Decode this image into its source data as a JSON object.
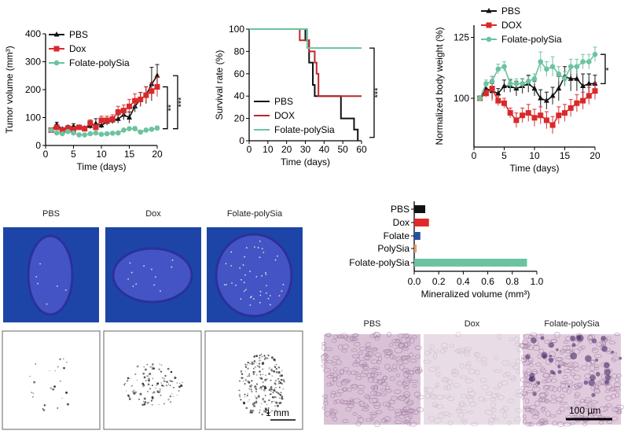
{
  "colors": {
    "pbs": "#111111",
    "dox": "#d9292b",
    "folate_polysia": "#6cc3a0",
    "folate": "#2a4fa0",
    "polysia": "#e0a070",
    "ct_bg": "#1d45a8"
  },
  "chart_data": [
    {
      "id": "tumor",
      "type": "line",
      "xlabel": "Time (days)",
      "ylabel": "Tumor volume (mm³)",
      "xlim": [
        0,
        20
      ],
      "ylim": [
        0,
        400
      ],
      "xticks": [
        0,
        5,
        10,
        15,
        20
      ],
      "yticks": [
        0,
        100,
        200,
        300,
        400
      ],
      "legend": "top-left",
      "x": [
        1,
        2,
        3,
        4,
        5,
        6,
        7,
        8,
        9,
        10,
        11,
        12,
        13,
        14,
        15,
        16,
        17,
        18,
        19,
        20
      ],
      "series": [
        {
          "name": "PBS",
          "marker": "triangle",
          "color": "#111111",
          "values": [
            55,
            75,
            58,
            65,
            68,
            65,
            62,
            70,
            78,
            72,
            85,
            90,
            95,
            110,
            100,
            140,
            165,
            180,
            220,
            250
          ],
          "err": [
            5,
            8,
            6,
            6,
            10,
            8,
            6,
            10,
            18,
            10,
            12,
            12,
            15,
            18,
            20,
            20,
            25,
            30,
            60,
            40
          ]
        },
        {
          "name": "Dox",
          "marker": "square",
          "color": "#d9292b",
          "values": [
            55,
            65,
            55,
            62,
            58,
            65,
            60,
            80,
            65,
            90,
            90,
            95,
            120,
            125,
            140,
            160,
            165,
            180,
            195,
            210
          ],
          "err": [
            5,
            8,
            6,
            6,
            6,
            8,
            6,
            12,
            10,
            15,
            15,
            15,
            20,
            20,
            25,
            25,
            25,
            30,
            30,
            35
          ]
        },
        {
          "name": "Folate-polySia",
          "marker": "circle",
          "color": "#6cc3a0",
          "values": [
            55,
            45,
            42,
            50,
            45,
            38,
            38,
            42,
            45,
            40,
            42,
            44,
            45,
            55,
            60,
            60,
            48,
            55,
            58,
            62
          ],
          "err": [
            4,
            4,
            4,
            4,
            4,
            3,
            3,
            4,
            4,
            4,
            4,
            4,
            4,
            5,
            6,
            8,
            6,
            6,
            6,
            8
          ]
        }
      ],
      "significance": [
        "**",
        "***"
      ]
    },
    {
      "id": "survival",
      "type": "line",
      "step": true,
      "xlabel": "Time (days)",
      "ylabel": "Survival rate (%)",
      "xlim": [
        0,
        60
      ],
      "ylim": [
        0,
        100
      ],
      "xticks": [
        0,
        10,
        20,
        30,
        40,
        50,
        60
      ],
      "yticks": [
        0,
        20,
        40,
        60,
        80,
        100
      ],
      "legend": "bottom-left",
      "series": [
        {
          "name": "PBS",
          "color": "#111111",
          "points": [
            [
              0,
              100
            ],
            [
              30,
              100
            ],
            [
              30,
              90
            ],
            [
              32,
              90
            ],
            [
              32,
              70
            ],
            [
              34,
              70
            ],
            [
              34,
              50
            ],
            [
              35,
              50
            ],
            [
              35,
              40
            ],
            [
              49,
              40
            ],
            [
              49,
              20
            ],
            [
              56,
              20
            ],
            [
              56,
              10
            ],
            [
              58,
              10
            ],
            [
              58,
              0
            ]
          ]
        },
        {
          "name": "DOX",
          "color": "#c0262a",
          "points": [
            [
              0,
              100
            ],
            [
              27,
              100
            ],
            [
              27,
              90
            ],
            [
              32,
              90
            ],
            [
              32,
              80
            ],
            [
              35,
              80
            ],
            [
              35,
              70
            ],
            [
              36,
              70
            ],
            [
              36,
              60
            ],
            [
              37,
              60
            ],
            [
              37,
              40
            ],
            [
              60,
              40
            ]
          ]
        },
        {
          "name": "Folate-polySia",
          "color": "#6cc3a0",
          "points": [
            [
              0,
              100
            ],
            [
              31,
              100
            ],
            [
              31,
              83
            ],
            [
              60,
              83
            ]
          ]
        }
      ],
      "significance": [
        "***"
      ]
    },
    {
      "id": "bodyweight",
      "type": "line",
      "xlabel": "Time (days)",
      "ylabel": "Normalized body weight (%)",
      "xlim": [
        0,
        20
      ],
      "ylim": [
        80,
        130
      ],
      "xticks": [
        0,
        5,
        10,
        15,
        20
      ],
      "yticks": [
        100,
        125
      ],
      "legend": "top",
      "x": [
        1,
        2,
        3,
        4,
        5,
        6,
        7,
        8,
        9,
        10,
        11,
        12,
        13,
        14,
        15,
        16,
        17,
        18,
        19,
        20
      ],
      "series": [
        {
          "name": "PBS",
          "marker": "triangle",
          "color": "#111111",
          "values": [
            100,
            104,
            103,
            102,
            105,
            105,
            104,
            105,
            106,
            104,
            100,
            99,
            101,
            104,
            109,
            108,
            108,
            105,
            106,
            106
          ],
          "err": [
            0,
            1.5,
            3,
            2,
            2.5,
            2.5,
            3,
            3,
            3.5,
            3,
            3.5,
            3.5,
            3.5,
            5,
            4,
            5,
            5,
            5,
            4,
            3.5
          ]
        },
        {
          "name": "DOX",
          "marker": "square",
          "color": "#d9292b",
          "values": [
            100,
            102,
            104,
            99,
            98,
            94,
            91,
            93,
            94,
            92,
            93,
            91,
            89,
            93,
            94,
            96,
            98,
            99,
            101,
            103
          ],
          "err": [
            0,
            1.5,
            5,
            2,
            2,
            2,
            3,
            3,
            3.5,
            3.5,
            3.5,
            3.5,
            3.5,
            3.5,
            3.5,
            3.5,
            3.5,
            3.5,
            3.5,
            3.5
          ]
        },
        {
          "name": "Folate-polySia",
          "marker": "circle",
          "color": "#6cc3a0",
          "values": [
            100,
            106,
            107,
            112,
            113,
            106,
            106,
            106,
            107,
            108,
            115,
            112,
            113,
            110,
            108,
            113,
            113,
            115,
            115,
            118
          ],
          "err": [
            0,
            1.5,
            2,
            2,
            2,
            2,
            2,
            2,
            2,
            2,
            4,
            3,
            4,
            3,
            3,
            3,
            3,
            3,
            3,
            3
          ]
        }
      ],
      "significance": [
        "*"
      ]
    },
    {
      "id": "mineralized",
      "type": "bar",
      "orientation": "horizontal",
      "xlabel": "Mineralized volume (mm³)",
      "xlim": [
        0,
        1.0
      ],
      "xticks": [
        "0.0",
        "0.2",
        "0.4",
        "0.6",
        "0.8",
        "1.0"
      ],
      "categories": [
        "PBS",
        "Dox",
        "Folate",
        "PolySia",
        "Folate-polySia"
      ],
      "values": [
        0.09,
        0.12,
        0.05,
        0.02,
        0.92
      ],
      "colors": [
        "#111111",
        "#e02a2a",
        "#2a4fa0",
        "#e0a070",
        "#6cc3a0"
      ]
    }
  ],
  "ct_panels": {
    "labels": [
      "PBS",
      "Dox",
      "Folate-polySia"
    ],
    "scale_bar": "1 mm"
  },
  "histology": {
    "labels": [
      "PBS",
      "Dox",
      "Folate-polySia"
    ],
    "scale_bar": "100 µm"
  }
}
